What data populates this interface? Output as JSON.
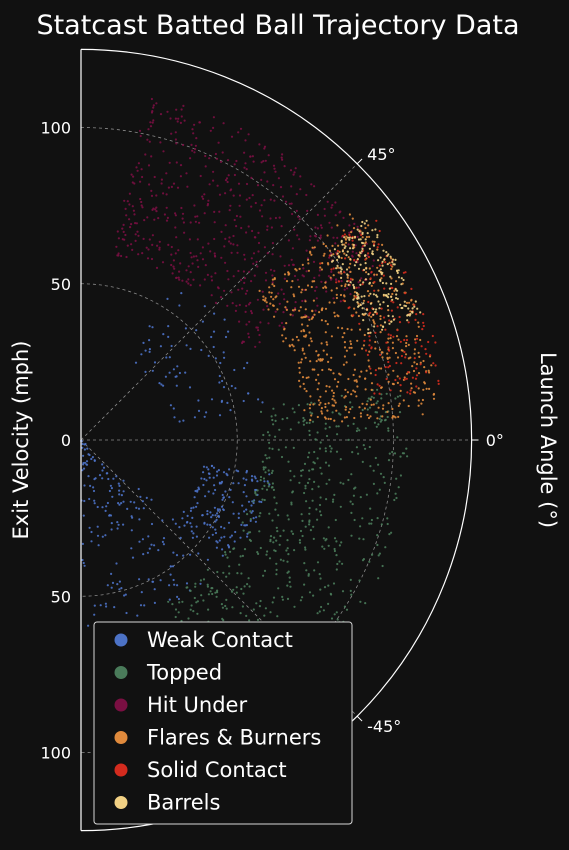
{
  "chart_data": {
    "type": "scatter",
    "coordinate_system": "polar half-plane",
    "title": "Statcast Batted Ball Trajectory Data",
    "xlabel": "Exit Velocity (mph)",
    "ylabel": "Launch Angle (°)",
    "radial_axis": {
      "range": [
        0,
        125
      ],
      "ticks": [
        50,
        100
      ],
      "tick_labels": [
        "50",
        "100"
      ]
    },
    "angular_axis": {
      "range": [
        -90,
        90
      ],
      "ticks": [
        45,
        0,
        -45
      ],
      "tick_labels": [
        "45°",
        "0°",
        "-45°"
      ]
    },
    "grid": true,
    "legend_position": "lower-left",
    "series": [
      {
        "name": "Weak Contact",
        "color": "#4c72c6",
        "regions": [
          {
            "angle": [
              -90,
              -40
            ],
            "ev": [
              0,
              60
            ],
            "share": 0.42
          },
          {
            "angle": [
              -40,
              -10
            ],
            "ev": [
              40,
              62
            ],
            "share": 0.38
          },
          {
            "angle": [
              10,
              60
            ],
            "ev": [
              30,
              62
            ],
            "share": 0.2
          }
        ]
      },
      {
        "name": "Topped",
        "color": "#4a7b5a",
        "regions": [
          {
            "angle": [
              -62,
              10
            ],
            "ev": [
              58,
              105
            ],
            "share": 1.0
          }
        ]
      },
      {
        "name": "Hit Under",
        "color": "#7a0f42",
        "regions": [
          {
            "angle": [
              28,
              80
            ],
            "ev": [
              60,
              112
            ],
            "share": 1.0
          }
        ]
      },
      {
        "name": "Flares & Burners",
        "color": "#e08a3c",
        "regions": [
          {
            "angle": [
              4,
              40
            ],
            "ev": [
              72,
              115
            ],
            "share": 1.0
          }
        ]
      },
      {
        "name": "Solid Contact",
        "color": "#d42b1e",
        "regions": [
          {
            "angle": [
              8,
              38
            ],
            "ev": [
              95,
              118
            ],
            "share": 1.0
          }
        ]
      },
      {
        "name": "Barrels",
        "color": "#f2d184",
        "regions": [
          {
            "angle": [
              20,
              38
            ],
            "ev": [
              98,
              116
            ],
            "share": 1.0
          }
        ]
      }
    ]
  }
}
